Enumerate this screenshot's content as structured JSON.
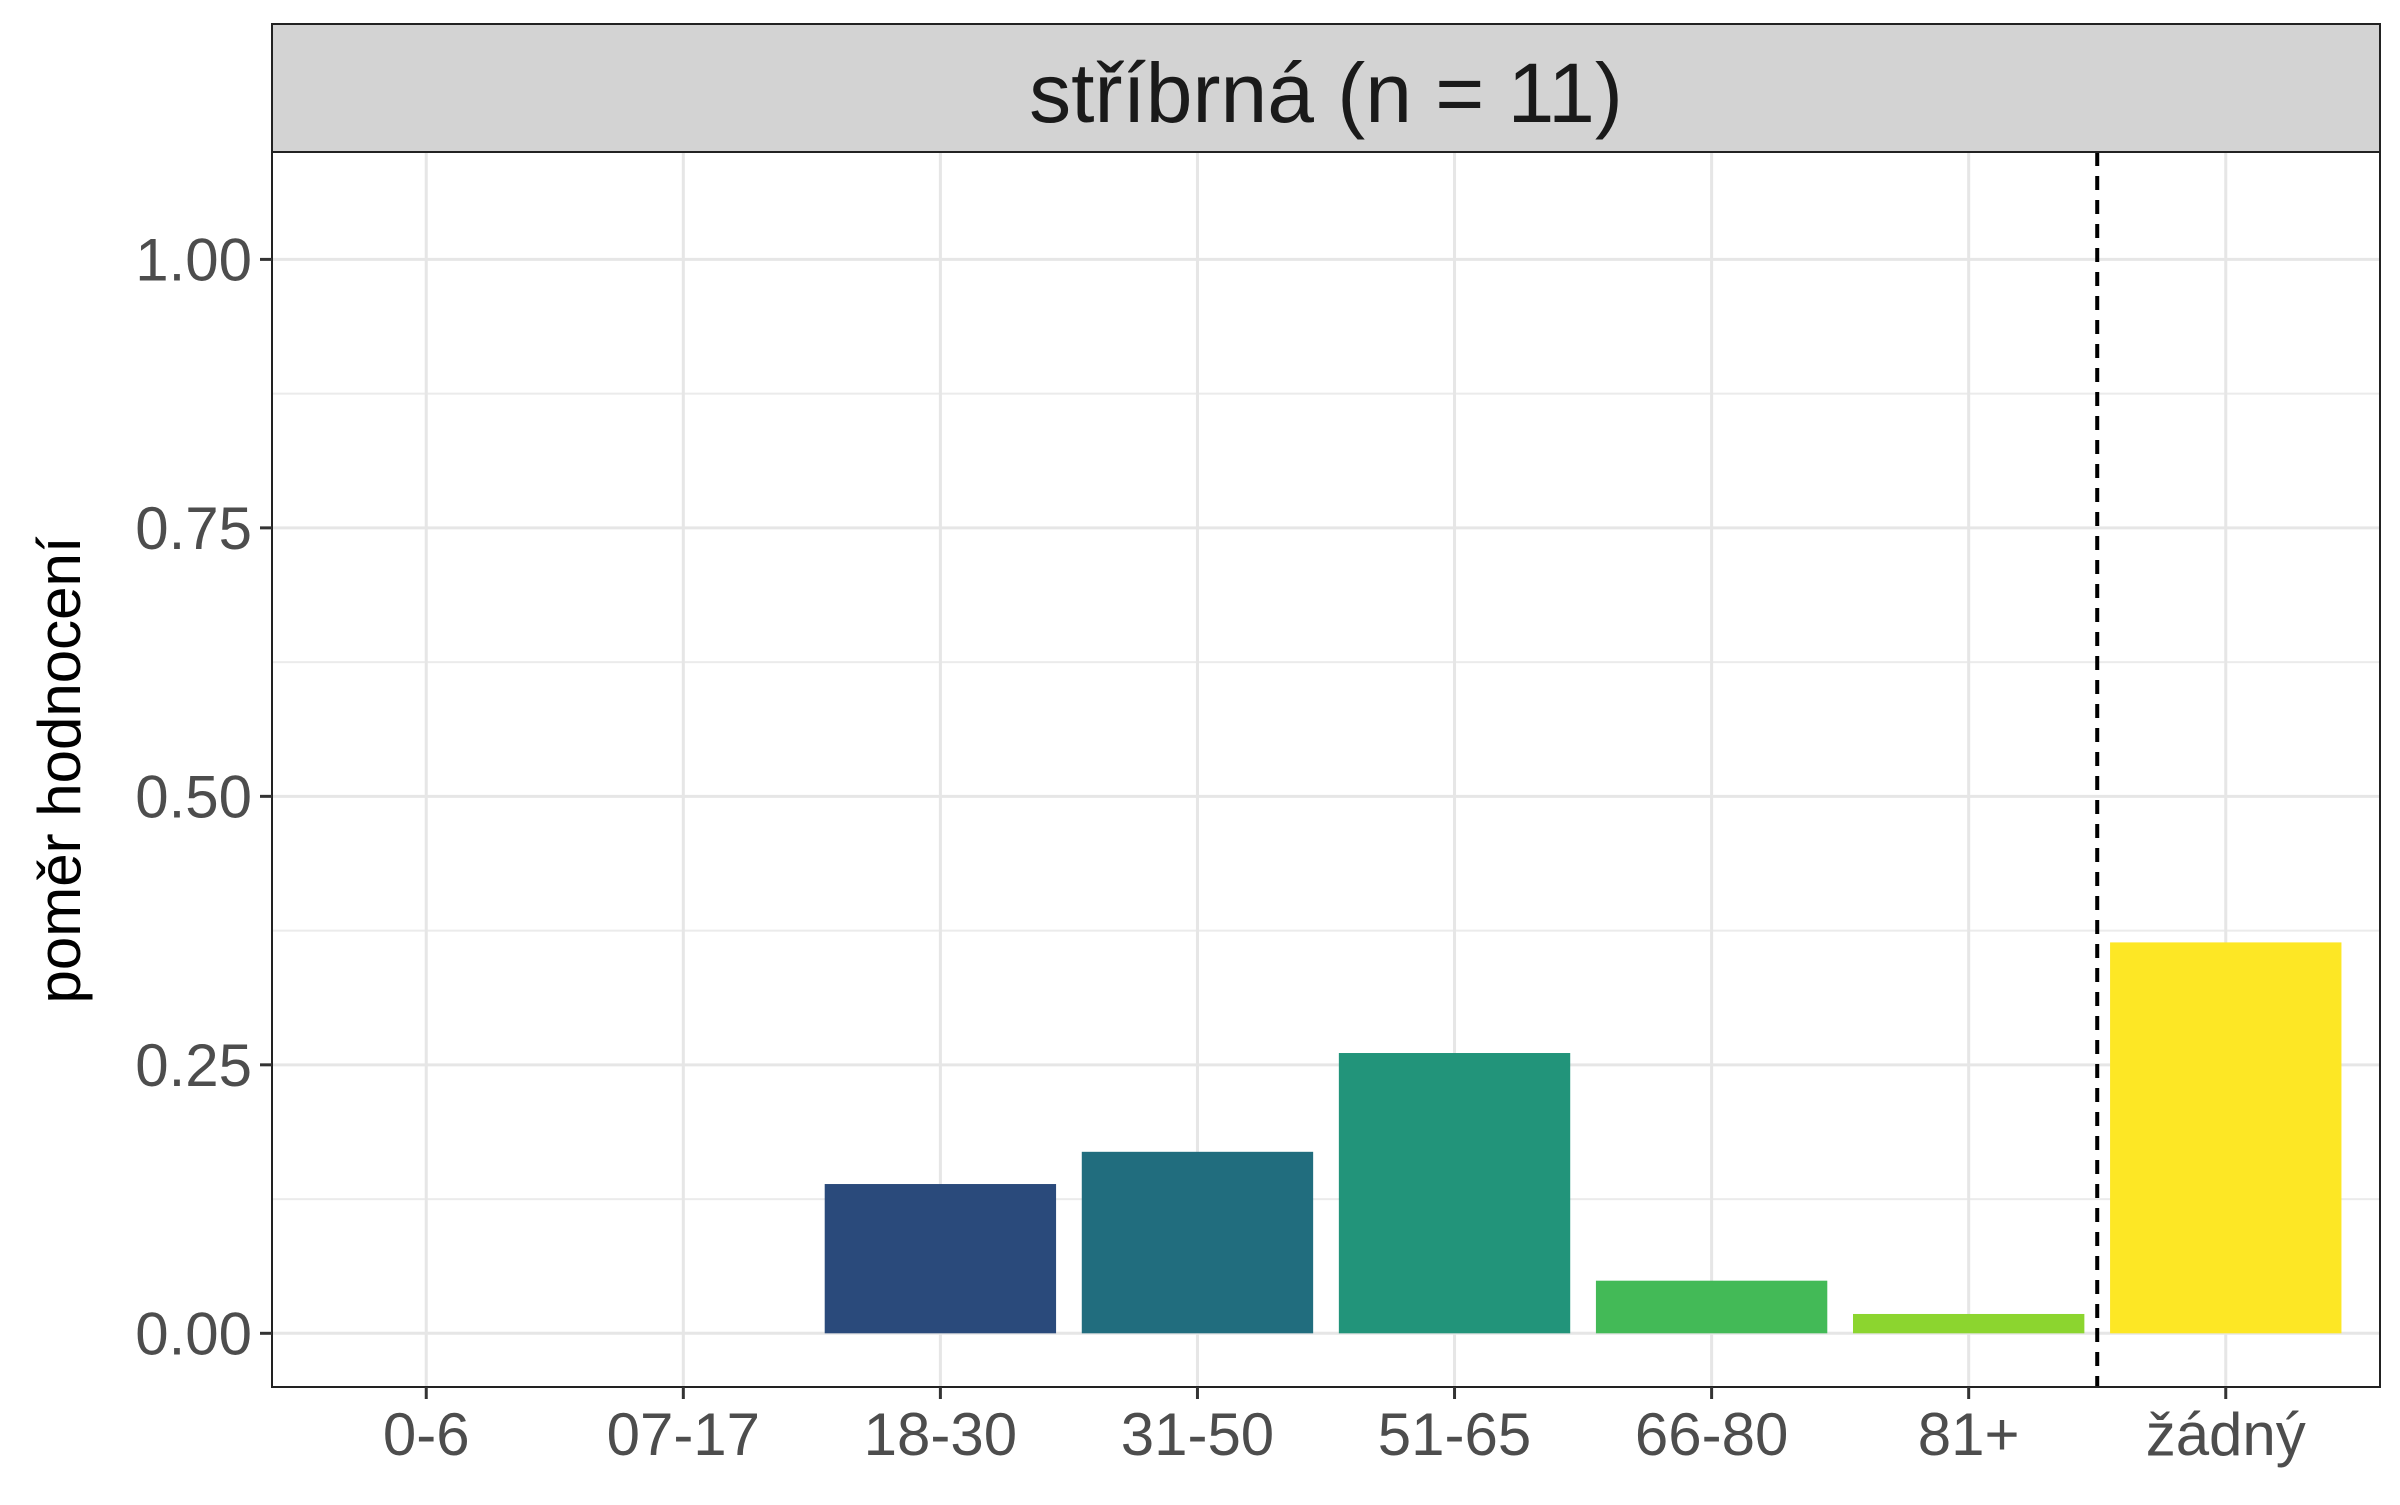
{
  "chart_data": {
    "type": "bar",
    "facet_title": "stříbrná (n = 11)",
    "ylabel": "poměr hodnocení",
    "xlabel": "",
    "categories": [
      "0-6",
      "07-17",
      "18-30",
      "31-50",
      "51-65",
      "66-80",
      "81+",
      "žádný"
    ],
    "values": [
      0,
      0,
      0.139,
      0.169,
      0.261,
      0.049,
      0.018,
      0.364
    ],
    "colors": [
      "#440154",
      "#46337E",
      "#2A4A7B",
      "#216D7E",
      "#22947A",
      "#43BA57",
      "#8CD52F",
      "#FDE725"
    ],
    "ylim": [
      -0.05,
      1.1
    ],
    "y_ticks": [
      0,
      0.25,
      0.5,
      0.75,
      1.0
    ],
    "y_tick_labels": [
      "0.00",
      "0.25",
      "0.50",
      "0.75",
      "1.00"
    ],
    "y_minor_ticks": [
      0.125,
      0.375,
      0.625,
      0.875
    ],
    "separator_between": [
      "81+",
      "žádný"
    ],
    "grid": true,
    "legend": "none"
  }
}
